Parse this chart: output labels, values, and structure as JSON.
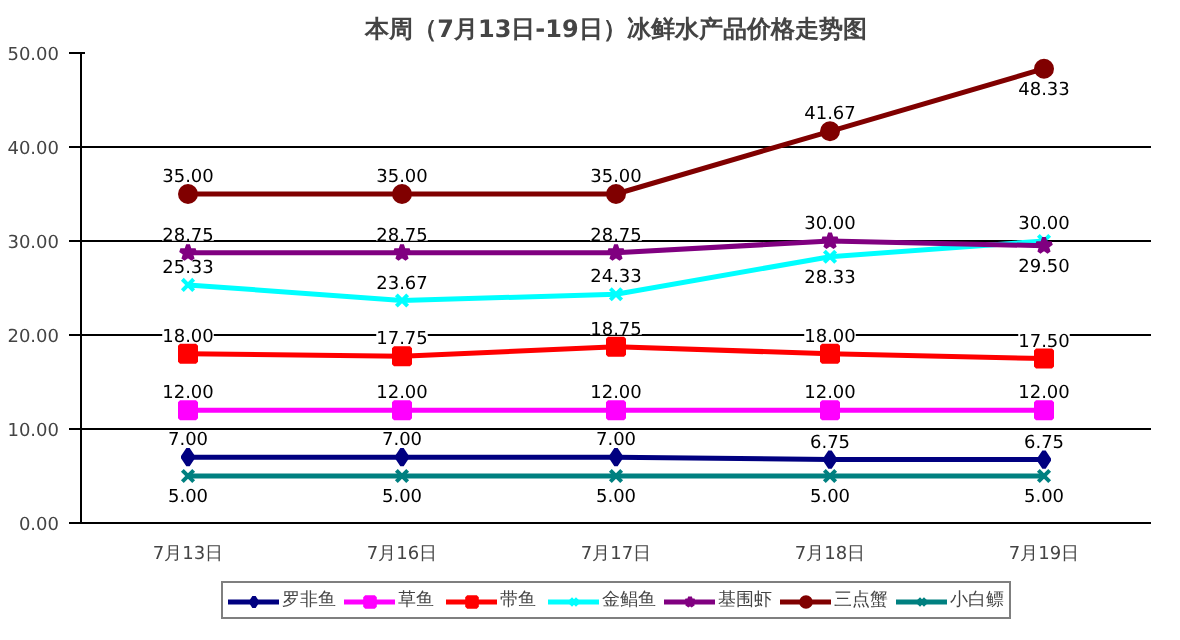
{
  "chart_data": {
    "type": "line",
    "title": "本周（7月13日-19日）冰鲜水产品价格走势图",
    "categories": [
      "7月13日",
      "7月16日",
      "7月17日",
      "7月18日",
      "7月19日"
    ],
    "series": [
      {
        "name": "罗非鱼",
        "color": "#000080",
        "marker": "diamond",
        "values": [
          7,
          7,
          7,
          6.75,
          6.75
        ],
        "value_labels": [
          "7.00",
          "7.00",
          "7.00",
          "6.75",
          "6.75"
        ]
      },
      {
        "name": "草鱼",
        "color": "#ff00ff",
        "marker": "square",
        "values": [
          12,
          12,
          12,
          12,
          12
        ],
        "value_labels": [
          "12.00",
          "12.00",
          "12.00",
          "12.00",
          "12.00"
        ]
      },
      {
        "name": "带鱼",
        "color": "#ff0000",
        "marker": "square",
        "values": [
          18,
          17.75,
          18.75,
          18,
          17.5
        ],
        "value_labels": [
          "18.00",
          "17.75",
          "18.75",
          "18.00",
          "17.50"
        ]
      },
      {
        "name": "金鲳鱼",
        "color": "#00ffff",
        "marker": "cross",
        "values": [
          25.33,
          23.67,
          24.33,
          28.33,
          30
        ],
        "value_labels": [
          "25.33",
          "23.67",
          "24.33",
          "28.33",
          "30.00"
        ]
      },
      {
        "name": "基围虾",
        "color": "#800080",
        "marker": "star",
        "values": [
          28.75,
          28.75,
          28.75,
          30,
          29.5
        ],
        "value_labels": [
          "28.75",
          "28.75",
          "28.75",
          "30.00",
          "29.50"
        ]
      },
      {
        "name": "三点蟹",
        "color": "#800000",
        "marker": "circle",
        "values": [
          35,
          35,
          35,
          41.67,
          48.33
        ],
        "value_labels": [
          "35.00",
          "35.00",
          "35.00",
          "41.67",
          "48.33"
        ]
      },
      {
        "name": "小白鳔",
        "color": "#008080",
        "marker": "cross",
        "values": [
          5,
          5,
          5,
          5,
          5
        ],
        "value_labels": [
          "5.00",
          "5.00",
          "5.00",
          "5.00",
          "5.00"
        ]
      }
    ],
    "ylim": [
      0,
      50
    ],
    "yticks": [
      {
        "value": 0,
        "label": "0.00"
      },
      {
        "value": 10,
        "label": "10.00"
      },
      {
        "value": 20,
        "label": "20.00"
      },
      {
        "value": 30,
        "label": "30.00"
      },
      {
        "value": 40,
        "label": "40.00"
      },
      {
        "value": 50,
        "label": "50.00"
      }
    ],
    "grid": "y",
    "legend": "bottom",
    "data_labels": true,
    "line_style": "solid"
  }
}
